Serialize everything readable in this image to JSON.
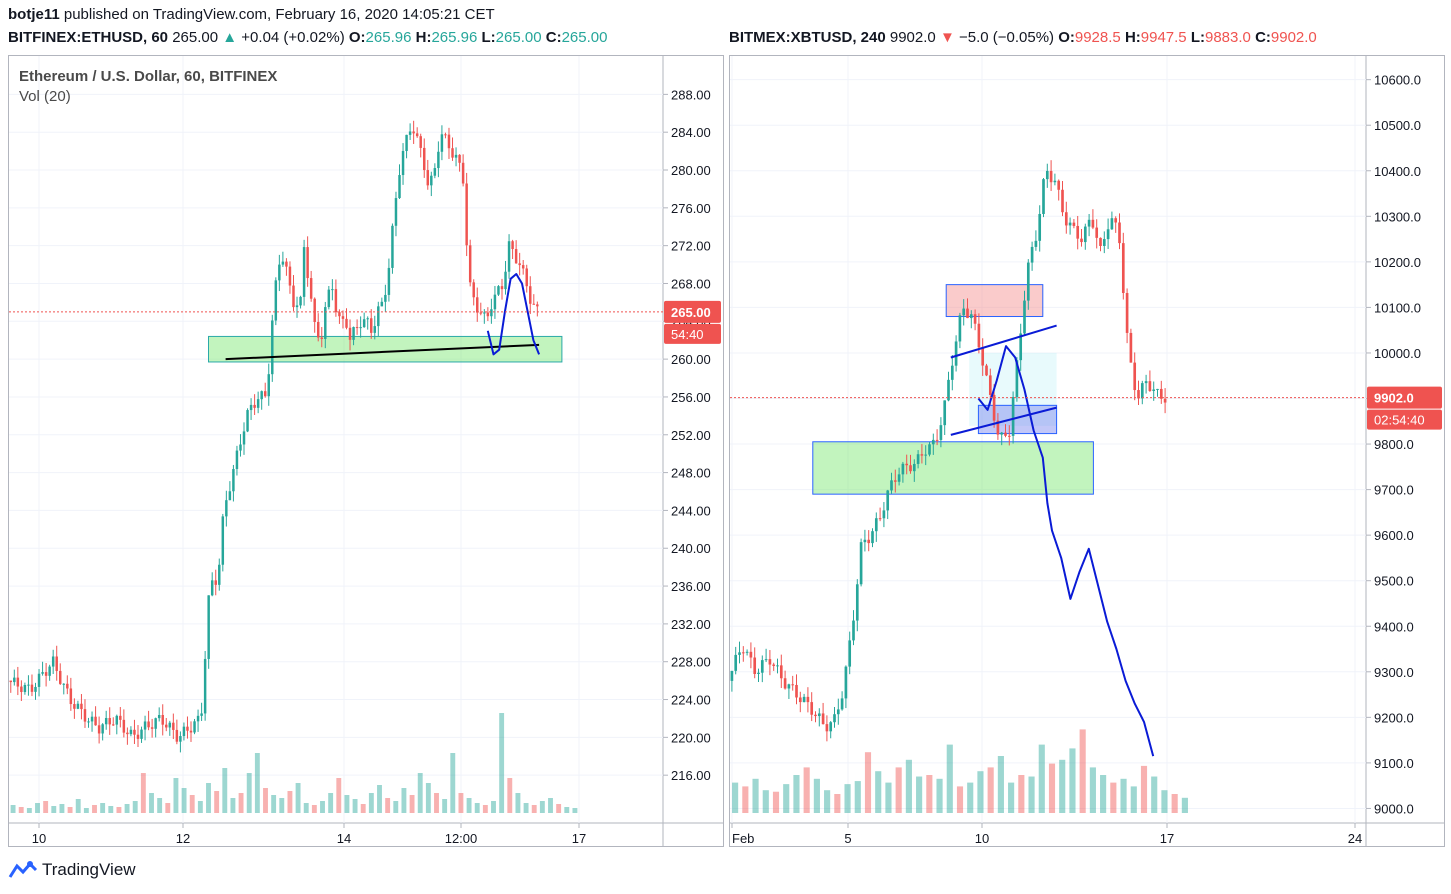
{
  "header": {
    "author": "botje11",
    "published_text": "published on TradingView.com, February 16, 2020 14:05:21 CET"
  },
  "footer": {
    "brand": "TradingView",
    "logo_icon": "tradingview-logo-icon"
  },
  "colors": {
    "up": "#26a69a",
    "down": "#ef5350",
    "drawing": "#0a1bd6"
  },
  "chart_data": [
    {
      "type": "candlestick",
      "symbol_line": "BITFINEX:ETHUSD, 60",
      "last": "265.00",
      "change": "+0.04 (+0.02%)",
      "direction": "up",
      "ohlc": {
        "O": "265.96",
        "H": "265.96",
        "L": "265.00",
        "C": "265.00"
      },
      "title": "Ethereum / U.S. Dollar, 60, BITFINEX",
      "indicator": "Vol (20)",
      "y_ticks": [
        "288.00",
        "284.00",
        "280.00",
        "276.00",
        "272.00",
        "268.00",
        "264.00",
        "260.00",
        "256.00",
        "252.00",
        "248.00",
        "244.00",
        "240.00",
        "236.00",
        "232.00",
        "228.00",
        "224.00",
        "220.00",
        "216.00"
      ],
      "ylim": [
        212,
        291
      ],
      "x_ticks": [
        "10",
        "12",
        "14",
        "12:00",
        "17"
      ],
      "price_label": "265.00",
      "countdown": "54:40",
      "price_path": [
        [
          0,
          226
        ],
        [
          4,
          225
        ],
        [
          8,
          228
        ],
        [
          11,
          224
        ],
        [
          14,
          222
        ],
        [
          16,
          221
        ],
        [
          19,
          222
        ],
        [
          22,
          220
        ],
        [
          24,
          221
        ],
        [
          27,
          222
        ],
        [
          30,
          220
        ],
        [
          32,
          221
        ],
        [
          34,
          222
        ],
        [
          35.5,
          236
        ],
        [
          37,
          237
        ],
        [
          38,
          244
        ],
        [
          40,
          249
        ],
        [
          42,
          254
        ],
        [
          44,
          256
        ],
        [
          45.5,
          256
        ],
        [
          46.5,
          264
        ],
        [
          47.5,
          270
        ],
        [
          48.5,
          271
        ],
        [
          50,
          266
        ],
        [
          51.5,
          266
        ],
        [
          52,
          272
        ],
        [
          53,
          268
        ],
        [
          54,
          263
        ],
        [
          55,
          262
        ],
        [
          56,
          266
        ],
        [
          57,
          268
        ],
        [
          58,
          264
        ],
        [
          59.5,
          264
        ],
        [
          60,
          262
        ],
        [
          61,
          263
        ],
        [
          62,
          264
        ],
        [
          63,
          264
        ],
        [
          64,
          263
        ],
        [
          65,
          265
        ],
        [
          66,
          266
        ],
        [
          67,
          270
        ],
        [
          68,
          276
        ],
        [
          69,
          281
        ],
        [
          70,
          283
        ],
        [
          71,
          285
        ],
        [
          72,
          283
        ],
        [
          73,
          281
        ],
        [
          74,
          278
        ],
        [
          75,
          280
        ],
        [
          76,
          284
        ],
        [
          77,
          283
        ],
        [
          78,
          282
        ],
        [
          79,
          281
        ],
        [
          80,
          279
        ],
        [
          81,
          268
        ],
        [
          82,
          266
        ],
        [
          83,
          265
        ],
        [
          84,
          264
        ],
        [
          85,
          266
        ],
        [
          86,
          267
        ],
        [
          87,
          268
        ],
        [
          88,
          272
        ],
        [
          89,
          271
        ],
        [
          90,
          270
        ],
        [
          91,
          268
        ],
        [
          92,
          266
        ],
        [
          93,
          265
        ]
      ],
      "volume_max": 190,
      "volumes": [
        8,
        6,
        5,
        10,
        12,
        7,
        9,
        6,
        14,
        5,
        8,
        10,
        7,
        6,
        9,
        12,
        40,
        20,
        15,
        10,
        35,
        25,
        18,
        12,
        30,
        22,
        45,
        15,
        20,
        40,
        60,
        25,
        18,
        15,
        22,
        30,
        10,
        8,
        12,
        20,
        35,
        18,
        14,
        9,
        20,
        28,
        15,
        12,
        25,
        18,
        40,
        30,
        20,
        14,
        60,
        20,
        15,
        10,
        8,
        12,
        100,
        35,
        20,
        10,
        8,
        12,
        15,
        9,
        6,
        5
      ],
      "support_zone": [
        259.7,
        262.4
      ],
      "trendline": [
        [
          38,
          260
        ],
        [
          93,
          261.5
        ]
      ]
    },
    {
      "type": "candlestick",
      "symbol_line": "BITMEX:XBTUSD, 240",
      "last": "9902.0",
      "change": "−5.0 (−0.05%)",
      "direction": "down",
      "ohlc": {
        "O": "9928.5",
        "H": "9947.5",
        "L": "9883.0",
        "C": "9902.0"
      },
      "y_ticks": [
        "10600.0",
        "10500.0",
        "10400.0",
        "10300.0",
        "10200.0",
        "10100.0",
        "10000.0",
        "9900.0",
        "9800.0",
        "9700.0",
        "9600.0",
        "9500.0",
        "9400.0",
        "9300.0",
        "9200.0",
        "9100.0",
        "9000.0"
      ],
      "ylim": [
        8990,
        10630
      ],
      "x_ticks": [
        "Feb",
        "5",
        "10",
        "17",
        "24"
      ],
      "price_label": "9902.0",
      "countdown": "02:54:40",
      "price_path": [
        [
          0,
          9280
        ],
        [
          3,
          9360
        ],
        [
          6,
          9300
        ],
        [
          9,
          9330
        ],
        [
          12,
          9280
        ],
        [
          15,
          9250
        ],
        [
          18,
          9220
        ],
        [
          21,
          9180
        ],
        [
          23,
          9190
        ],
        [
          25,
          9260
        ],
        [
          27,
          9400
        ],
        [
          29,
          9580
        ],
        [
          31,
          9600
        ],
        [
          33,
          9640
        ],
        [
          35,
          9700
        ],
        [
          37,
          9740
        ],
        [
          39,
          9750
        ],
        [
          41,
          9760
        ],
        [
          43,
          9790
        ],
        [
          45,
          9800
        ],
        [
          47,
          9880
        ],
        [
          49,
          10000
        ],
        [
          51,
          10100
        ],
        [
          53,
          10080
        ],
        [
          55,
          10000
        ],
        [
          57,
          9900
        ],
        [
          59,
          9810
        ],
        [
          61,
          9820
        ],
        [
          63,
          9990
        ],
        [
          65,
          10180
        ],
        [
          67,
          10260
        ],
        [
          69,
          10400
        ],
        [
          71,
          10380
        ],
        [
          73,
          10300
        ],
        [
          75,
          10270
        ],
        [
          77,
          10250
        ],
        [
          79,
          10300
        ],
        [
          81,
          10220
        ],
        [
          83,
          10300
        ],
        [
          85,
          10260
        ],
        [
          87,
          10000
        ],
        [
          89,
          9900
        ],
        [
          91,
          9940
        ],
        [
          93,
          9910
        ],
        [
          95,
          9902
        ]
      ],
      "volume_max": 250,
      "volumes": [
        40,
        35,
        45,
        30,
        28,
        38,
        50,
        60,
        45,
        30,
        25,
        38,
        42,
        80,
        55,
        40,
        60,
        70,
        48,
        50,
        45,
        90,
        35,
        40,
        55,
        60,
        75,
        40,
        50,
        48,
        90,
        65,
        70,
        85,
        110,
        60,
        50,
        40,
        45,
        35,
        62,
        48,
        30,
        25,
        20
      ],
      "sell_zone": [
        10080,
        10150
      ],
      "buy_zone": [
        9690,
        9805
      ],
      "flag_zone": [
        9823,
        9885
      ],
      "channel_top": [
        [
          48,
          9990
        ],
        [
          71,
          10060
        ]
      ],
      "channel_bottom": [
        [
          48,
          9820
        ],
        [
          71,
          9880
        ]
      ],
      "projection": [
        [
          54,
          9900
        ],
        [
          56,
          9875
        ],
        [
          58,
          9940
        ],
        [
          60,
          10015
        ],
        [
          62,
          9990
        ],
        [
          64,
          9920
        ],
        [
          66,
          9830
        ],
        [
          68,
          9770
        ],
        [
          69,
          9670
        ],
        [
          70,
          9610
        ],
        [
          72,
          9550
        ],
        [
          74,
          9460
        ],
        [
          76,
          9520
        ],
        [
          78,
          9570
        ],
        [
          80,
          9490
        ],
        [
          82,
          9410
        ],
        [
          84,
          9350
        ],
        [
          86,
          9280
        ],
        [
          88,
          9230
        ],
        [
          90,
          9190
        ],
        [
          92,
          9115
        ]
      ]
    }
  ]
}
